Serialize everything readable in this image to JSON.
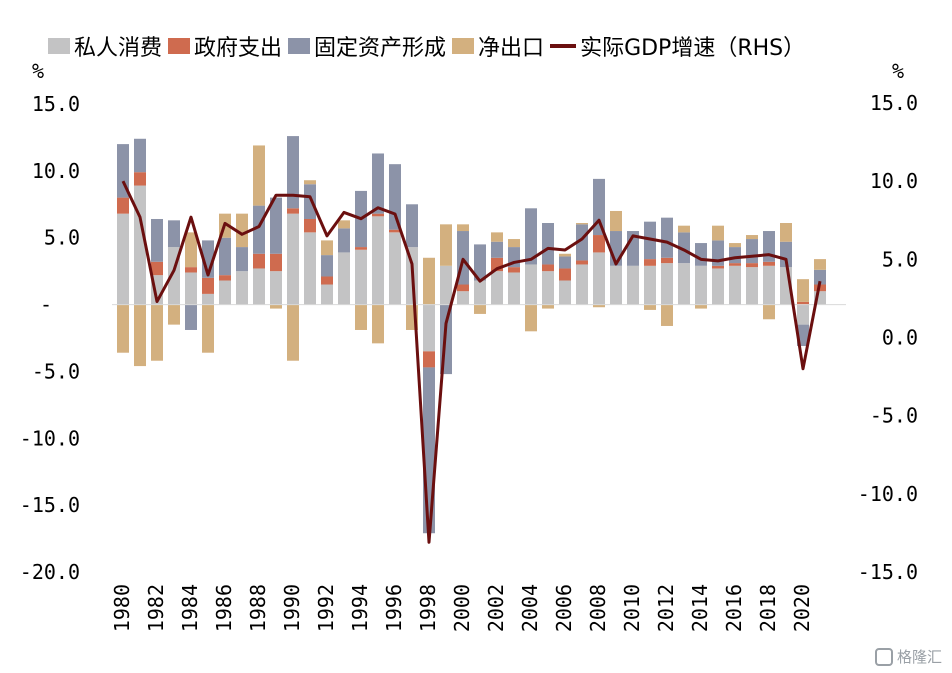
{
  "chart_data": {
    "type": "bar",
    "stacked": true,
    "left_unit": "%",
    "right_unit": "%",
    "left_ylim": [
      -20,
      15
    ],
    "right_ylim": [
      -15,
      15
    ],
    "left_ticks": [
      15,
      10,
      5,
      0,
      -5,
      -10,
      -15,
      -20
    ],
    "left_tick_labels": [
      "15.0",
      "10.0",
      "5.0",
      "-",
      "-5.0",
      "-10.0",
      "-15.0",
      "-20.0"
    ],
    "right_ticks": [
      15,
      10,
      5,
      0,
      -5,
      -10,
      -15
    ],
    "right_tick_labels": [
      "15.0",
      "10.0",
      "5.0",
      "0.0",
      "-5.0",
      "-10.0",
      "-15.0"
    ],
    "x_tick_labels": [
      "1980",
      "1982",
      "1984",
      "1986",
      "1988",
      "1990",
      "1992",
      "1994",
      "1996",
      "1998",
      "2000",
      "2002",
      "2004",
      "2006",
      "2008",
      "2010",
      "2012",
      "2014",
      "2016",
      "2018",
      "2020"
    ],
    "x_tick_years": [
      1980,
      1982,
      1984,
      1986,
      1988,
      1990,
      1992,
      1994,
      1996,
      1998,
      2000,
      2002,
      2004,
      2006,
      2008,
      2010,
      2012,
      2014,
      2016,
      2018,
      2020
    ],
    "categories": [
      1980,
      1981,
      1982,
      1983,
      1984,
      1985,
      1986,
      1987,
      1988,
      1989,
      1990,
      1991,
      1992,
      1993,
      1994,
      1995,
      1996,
      1997,
      1998,
      1999,
      2000,
      2001,
      2002,
      2003,
      2004,
      2005,
      2006,
      2007,
      2008,
      2009,
      2010,
      2011,
      2012,
      2013,
      2014,
      2015,
      2016,
      2017,
      2018,
      2019,
      2020,
      2021
    ],
    "series": [
      {
        "name": "私人消费",
        "type": "bar",
        "axis": "left",
        "color": "#c3c3c4",
        "values": [
          6.8,
          8.9,
          2.2,
          4.3,
          2.4,
          0.8,
          1.8,
          2.5,
          2.7,
          2.5,
          6.8,
          5.4,
          1.5,
          3.9,
          4.1,
          6.6,
          5.4,
          4.3,
          -3.5,
          2.9,
          1.0,
          1.8,
          2.5,
          2.4,
          3.0,
          2.5,
          1.8,
          3.0,
          3.9,
          2.9,
          2.9,
          2.9,
          3.1,
          3.1,
          2.9,
          2.7,
          2.9,
          2.8,
          2.9,
          2.8,
          -1.5,
          1.0
        ]
      },
      {
        "name": "政府支出",
        "type": "bar",
        "axis": "left",
        "color": "#cf6b4f",
        "values": [
          1.2,
          1.0,
          1.0,
          0.0,
          0.4,
          1.2,
          0.4,
          0.0,
          1.1,
          1.3,
          0.4,
          1.0,
          0.6,
          0.0,
          0.2,
          0.2,
          0.2,
          0.0,
          -1.2,
          0.0,
          0.5,
          0.0,
          1.0,
          0.4,
          0.0,
          0.5,
          0.9,
          0.3,
          1.3,
          0.0,
          0.0,
          0.5,
          0.4,
          0.0,
          0.0,
          0.2,
          0.2,
          0.3,
          0.3,
          0.0,
          0.2,
          0.5
        ]
      },
      {
        "name": "固定资产形成",
        "type": "bar",
        "axis": "left",
        "color": "#8c93a8",
        "values": [
          4.0,
          2.5,
          3.2,
          2.0,
          -1.9,
          2.8,
          2.8,
          1.8,
          3.6,
          4.2,
          5.4,
          2.6,
          1.6,
          1.8,
          4.2,
          4.5,
          4.9,
          3.2,
          -12.4,
          -5.2,
          4.0,
          2.7,
          1.2,
          1.5,
          4.2,
          3.1,
          0.9,
          2.7,
          4.2,
          2.6,
          2.6,
          2.8,
          3.0,
          2.3,
          1.7,
          1.9,
          1.2,
          1.8,
          2.3,
          1.9,
          -1.6,
          1.1
        ]
      },
      {
        "name": "净出口",
        "type": "bar",
        "axis": "left",
        "color": "#d3b07f",
        "values": [
          -3.6,
          -4.6,
          -4.2,
          -1.5,
          2.6,
          -3.6,
          1.8,
          2.5,
          4.5,
          -0.3,
          -4.2,
          0.3,
          1.1,
          0.6,
          -1.9,
          -2.9,
          0.0,
          -1.9,
          3.5,
          3.1,
          0.5,
          -0.7,
          0.7,
          0.6,
          -2.0,
          -0.3,
          0.2,
          0.1,
          -0.2,
          1.5,
          0.0,
          -0.4,
          -1.6,
          0.5,
          -0.3,
          1.1,
          0.3,
          0.3,
          -1.1,
          1.4,
          1.7,
          0.8
        ]
      },
      {
        "name": "实际GDP增速（RHS）",
        "type": "line",
        "axis": "right",
        "color": "#6b0f0f",
        "values": [
          10.0,
          7.7,
          2.3,
          4.3,
          7.7,
          4.0,
          7.3,
          6.6,
          7.1,
          9.1,
          9.1,
          9.0,
          6.5,
          8.0,
          7.6,
          8.3,
          7.9,
          4.7,
          -13.1,
          0.9,
          5.0,
          3.6,
          4.4,
          4.8,
          5.0,
          5.7,
          5.6,
          6.3,
          7.5,
          4.7,
          6.5,
          6.3,
          6.1,
          5.6,
          5.0,
          4.9,
          5.1,
          5.2,
          5.3,
          5.0,
          -2.0,
          3.6
        ]
      }
    ],
    "legend_position": "top"
  },
  "legend": [
    {
      "label": "私人消费",
      "kind": "box",
      "color": "#c3c3c4"
    },
    {
      "label": "政府支出",
      "kind": "box",
      "color": "#cf6b4f"
    },
    {
      "label": "固定资产形成",
      "kind": "box",
      "color": "#8c93a8"
    },
    {
      "label": "净出口",
      "kind": "box",
      "color": "#d3b07f"
    },
    {
      "label": "实际GDP增速（RHS）",
      "kind": "line",
      "color": "#6b0f0f"
    }
  ],
  "watermark": {
    "text": "格隆汇",
    "icon": "logo-icon"
  }
}
